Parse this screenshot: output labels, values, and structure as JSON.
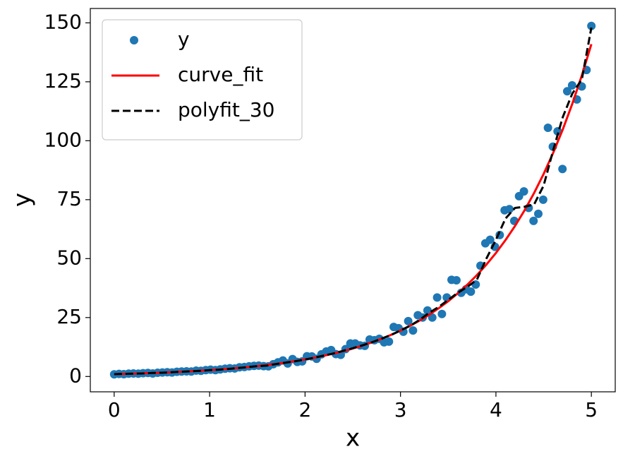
{
  "chart_data": {
    "type": "scatter",
    "xlabel": "x",
    "ylabel": "y",
    "xlim": [
      -0.25,
      5.25
    ],
    "ylim": [
      -6.5,
      156.1
    ],
    "xticks": [
      0,
      1,
      2,
      3,
      4,
      5
    ],
    "yticks": [
      0,
      25,
      50,
      75,
      100,
      125,
      150
    ],
    "legend": "upper left",
    "series": [
      {
        "name": "y",
        "type": "scatter",
        "color": "#1f77b4",
        "x": [
          0,
          0.051,
          0.101,
          0.152,
          0.202,
          0.253,
          0.303,
          0.354,
          0.404,
          0.455,
          0.505,
          0.556,
          0.606,
          0.657,
          0.707,
          0.758,
          0.808,
          0.859,
          0.909,
          0.96,
          1.01,
          1.061,
          1.111,
          1.162,
          1.212,
          1.263,
          1.313,
          1.364,
          1.414,
          1.465,
          1.515,
          1.566,
          1.616,
          1.667,
          1.717,
          1.768,
          1.818,
          1.869,
          1.919,
          1.97,
          2.02,
          2.071,
          2.121,
          2.172,
          2.222,
          2.273,
          2.323,
          2.374,
          2.424,
          2.475,
          2.525,
          2.576,
          2.626,
          2.677,
          2.727,
          2.778,
          2.828,
          2.879,
          2.929,
          2.98,
          3.03,
          3.081,
          3.131,
          3.182,
          3.232,
          3.283,
          3.333,
          3.384,
          3.434,
          3.485,
          3.535,
          3.586,
          3.636,
          3.687,
          3.737,
          3.788,
          3.838,
          3.889,
          3.939,
          3.99,
          4.04,
          4.091,
          4.141,
          4.192,
          4.242,
          4.293,
          4.343,
          4.394,
          4.444,
          4.495,
          4.545,
          4.596,
          4.646,
          4.697,
          4.747,
          4.798,
          4.848,
          4.899,
          4.949,
          5
        ],
        "values": [
          0.9,
          1.1,
          1.0,
          1.2,
          1.3,
          1.2,
          1.4,
          1.5,
          1.3,
          1.6,
          1.7,
          1.8,
          1.7,
          2.0,
          2.1,
          2.2,
          2.1,
          2.5,
          2.4,
          2.7,
          2.9,
          2.7,
          3.0,
          3.3,
          3.5,
          3.4,
          3.9,
          4.0,
          4.3,
          4.5,
          4.6,
          4.4,
          4.3,
          5.2,
          6.0,
          6.8,
          5.5,
          7.4,
          6.2,
          6.4,
          8.6,
          8.5,
          7.5,
          9.4,
          10.6,
          11.2,
          9.5,
          9.2,
          11.6,
          14.0,
          14.0,
          13.2,
          13.0,
          15.7,
          15.4,
          16.0,
          14.5,
          14.8,
          21.0,
          20.5,
          19,
          23.5,
          19.5,
          26,
          25,
          28,
          25,
          33.5,
          26.5,
          33.5,
          41,
          40.8,
          35.5,
          37,
          36,
          39,
          47,
          56.5,
          58,
          55,
          60,
          70.5,
          71,
          66,
          76.5,
          78.5,
          71.5,
          66,
          69,
          75,
          105.5,
          97.5,
          104,
          88,
          121,
          123.5,
          117.5,
          123,
          130,
          148.7
        ]
      },
      {
        "name": "curve_fit",
        "type": "line",
        "color": "#ff0000",
        "linestyle": "solid",
        "x": [
          0,
          0.1,
          0.2,
          0.3,
          0.4,
          0.5,
          0.6,
          0.7,
          0.8,
          0.9,
          1,
          1.1,
          1.2,
          1.3,
          1.4,
          1.5,
          1.6,
          1.7,
          1.8,
          1.9,
          2,
          2.1,
          2.2,
          2.3,
          2.4,
          2.5,
          2.6,
          2.7,
          2.8,
          2.9,
          3,
          3.1,
          3.2,
          3.3,
          3.4,
          3.5,
          3.6,
          3.7,
          3.8,
          3.9,
          4,
          4.1,
          4.2,
          4.3,
          4.4,
          4.5,
          4.6,
          4.7,
          4.8,
          4.9,
          5
        ],
        "values": [
          1.0,
          1.1,
          1.22,
          1.35,
          1.49,
          1.64,
          1.81,
          2.0,
          2.21,
          2.44,
          2.69,
          2.97,
          3.28,
          3.62,
          4.0,
          4.41,
          4.87,
          5.38,
          5.94,
          6.56,
          7.24,
          7.99,
          8.82,
          9.74,
          10.75,
          11.87,
          13.1,
          14.47,
          15.97,
          17.64,
          19.47,
          21.5,
          23.73,
          26.2,
          28.93,
          31.94,
          35.26,
          38.93,
          42.98,
          47.45,
          52.39,
          57.84,
          63.86,
          70.5,
          77.84,
          85.94,
          94.88,
          104.75,
          115.65,
          127.68,
          140.97
        ]
      },
      {
        "name": "polyfit_30",
        "type": "line",
        "color": "#000000",
        "linestyle": "dashed",
        "x": [
          0,
          0.1,
          0.2,
          0.3,
          0.4,
          0.5,
          0.6,
          0.7,
          0.8,
          0.9,
          1,
          1.1,
          1.2,
          1.3,
          1.4,
          1.5,
          1.6,
          1.7,
          1.8,
          1.9,
          2,
          2.1,
          2.2,
          2.3,
          2.4,
          2.5,
          2.6,
          2.7,
          2.8,
          2.9,
          3,
          3.1,
          3.2,
          3.3,
          3.4,
          3.5,
          3.6,
          3.7,
          3.8,
          3.9,
          4,
          4.1,
          4.2,
          4.3,
          4.4,
          4.5,
          4.6,
          4.7,
          4.8,
          4.9,
          5
        ],
        "values": [
          1.0,
          1.1,
          1.2,
          1.3,
          1.5,
          1.6,
          1.8,
          2.0,
          2.2,
          2.4,
          2.7,
          2.9,
          3.2,
          3.6,
          4.0,
          4.4,
          4.6,
          5.3,
          5.9,
          6.5,
          7.2,
          8.0,
          8.9,
          9.8,
          10.9,
          12.0,
          13.2,
          14.5,
          16.0,
          17.6,
          19.5,
          21.5,
          24,
          27,
          29.5,
          32.5,
          35.5,
          38,
          41,
          50,
          58,
          67,
          71.5,
          72,
          73,
          81,
          96,
          110,
          120,
          126,
          148
        ]
      }
    ]
  }
}
